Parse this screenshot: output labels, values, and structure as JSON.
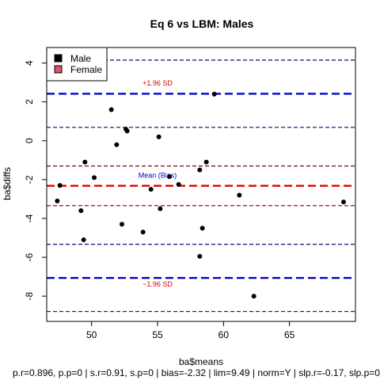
{
  "chart_data": {
    "type": "scatter",
    "title": "Eq 6 vs LBM: Males",
    "xlabel": "ba$means",
    "ylabel": "ba$diffs",
    "xlim": [
      46.6,
      70.0
    ],
    "ylim": [
      -9.3,
      4.8
    ],
    "xticks": [
      50,
      55,
      60,
      65
    ],
    "yticks": [
      4,
      2,
      0,
      -2,
      -4,
      -6,
      -8
    ],
    "legend": {
      "position": "top-left",
      "entries": [
        {
          "label": "Male",
          "color": "#000000"
        },
        {
          "label": "Female",
          "color": "#DF536B"
        }
      ]
    },
    "series": [
      {
        "name": "Male",
        "color": "#000000",
        "points": [
          [
            47.4,
            -3.1
          ],
          [
            47.6,
            -2.3
          ],
          [
            49.2,
            -3.6
          ],
          [
            49.4,
            -5.1
          ],
          [
            49.5,
            -1.1
          ],
          [
            50.2,
            -1.9
          ],
          [
            51.5,
            1.6
          ],
          [
            51.9,
            -0.2
          ],
          [
            52.3,
            -4.3
          ],
          [
            52.6,
            0.6
          ],
          [
            52.7,
            0.5
          ],
          [
            53.9,
            -4.7
          ],
          [
            54.5,
            -2.5
          ],
          [
            55.1,
            0.2
          ],
          [
            55.2,
            -3.5
          ],
          [
            55.9,
            -1.85
          ],
          [
            56.6,
            -2.25
          ],
          [
            58.2,
            -1.5
          ],
          [
            58.2,
            -5.95
          ],
          [
            58.4,
            -4.5
          ],
          [
            58.7,
            -1.1
          ],
          [
            59.3,
            2.4
          ],
          [
            61.2,
            -2.8
          ],
          [
            62.3,
            -8.0
          ],
          [
            69.1,
            -3.15
          ]
        ]
      }
    ],
    "reference_lines": [
      {
        "name": "upper-loa-outer-ci",
        "y": 4.15,
        "color": "#1A237E",
        "style": "dashed"
      },
      {
        "name": "upper-loa",
        "y": 2.42,
        "color": "#0000CD",
        "style": "dashed-thick"
      },
      {
        "name": "upper-loa-inner-ci",
        "y": 0.69,
        "color": "#1A237E",
        "style": "dashed"
      },
      {
        "name": "bias-upper-ci",
        "y": -1.3,
        "color": "#8B1A1A",
        "style": "dashed"
      },
      {
        "name": "bias",
        "y": -2.32,
        "color": "#E00000",
        "style": "dashed-thick"
      },
      {
        "name": "bias-lower-ci",
        "y": -3.34,
        "color": "#8B1A1A",
        "style": "dashed"
      },
      {
        "name": "lower-loa-inner-ci",
        "y": -5.33,
        "color": "#1A237E",
        "style": "dashed"
      },
      {
        "name": "lower-loa",
        "y": -7.06,
        "color": "#0000CD",
        "style": "dashed-thick"
      },
      {
        "name": "lower-loa-outer-ci",
        "y": -8.79,
        "color": "#1A237E",
        "style": "dashed"
      }
    ],
    "annotations": [
      {
        "text": "+1.96 SD",
        "x": 55.0,
        "y": 2.85,
        "color": "#E00000"
      },
      {
        "text": "Mean (Bias)",
        "x": 55.0,
        "y": -1.9,
        "color": "#0000CD"
      },
      {
        "text": "−1.96 SD",
        "x": 55.0,
        "y": -7.5,
        "color": "#E00000"
      }
    ],
    "footer": "p.r=0.896, p.p=0 | s.r=0.91, s.p=0 | bias=-2.32 | lim=9.49 | norm=Y | slp.r=-0.17, slp.p=0"
  }
}
